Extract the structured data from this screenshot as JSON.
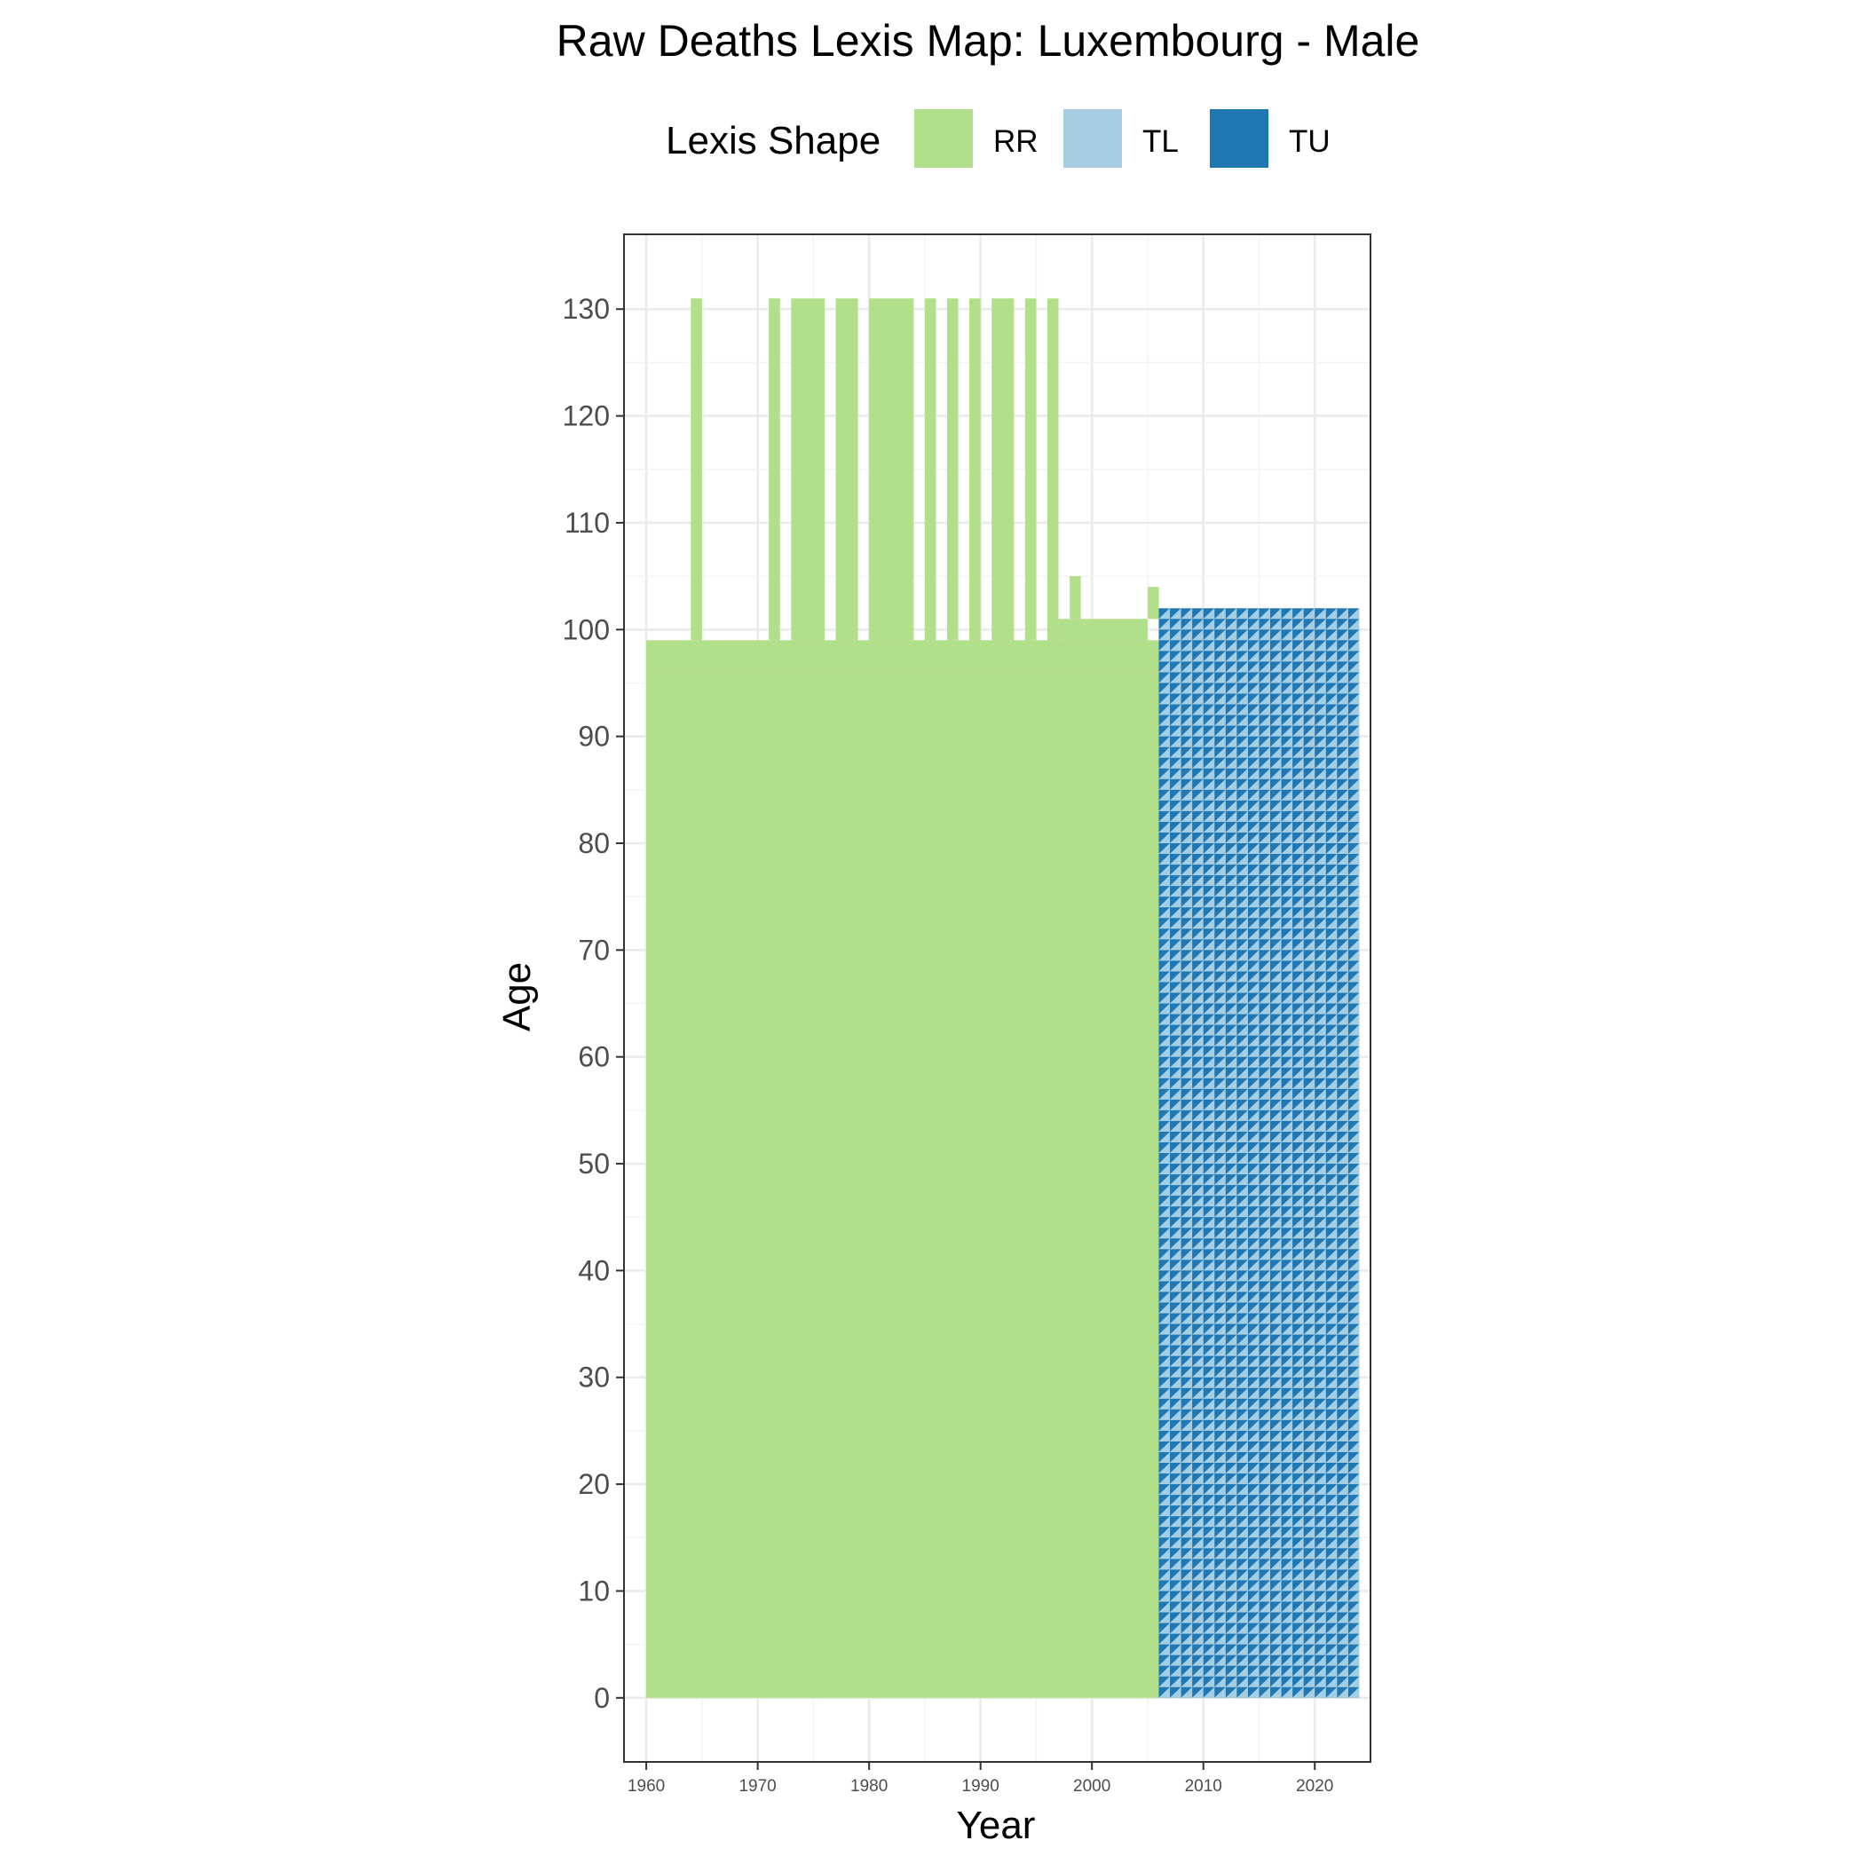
{
  "chart_data": {
    "type": "heatmap",
    "title": "Raw Deaths Lexis Map: Luxembourg - Male",
    "xlabel": "Year",
    "ylabel": "Age",
    "xlim": [
      1958,
      2025
    ],
    "ylim": [
      -6,
      137
    ],
    "x_ticks": [
      1960,
      1970,
      1980,
      1990,
      2000,
      2010,
      2020
    ],
    "y_ticks": [
      0,
      10,
      20,
      30,
      40,
      50,
      60,
      70,
      80,
      90,
      100,
      110,
      120,
      130
    ],
    "grid": true,
    "legend": {
      "title": "Lexis Shape",
      "position": "top",
      "entries": [
        {
          "key": "RR",
          "label": "RR",
          "color": "#b2df8a"
        },
        {
          "key": "TL",
          "label": "TL",
          "color": "#a6cee3"
        },
        {
          "key": "TU",
          "label": "TU",
          "color": "#1f78b4"
        }
      ]
    },
    "series": [
      {
        "shape": "RR",
        "color": "#b2df8a",
        "regions": [
          {
            "year_from": 1960,
            "year_to": 2006,
            "age_from": 0,
            "age_to": 96
          },
          {
            "year_from": 1960,
            "year_to": 2006,
            "age_from": 96,
            "age_to": 99
          },
          {
            "year_from": 1964,
            "year_to": 1965,
            "age_from": 99,
            "age_to": 131
          },
          {
            "year_from": 1971,
            "year_to": 1972,
            "age_from": 99,
            "age_to": 131
          },
          {
            "year_from": 1973,
            "year_to": 1976,
            "age_from": 99,
            "age_to": 131
          },
          {
            "year_from": 1977,
            "year_to": 1979,
            "age_from": 99,
            "age_to": 131
          },
          {
            "year_from": 1980,
            "year_to": 1984,
            "age_from": 99,
            "age_to": 131
          },
          {
            "year_from": 1985,
            "year_to": 1986,
            "age_from": 99,
            "age_to": 131
          },
          {
            "year_from": 1987,
            "year_to": 1988,
            "age_from": 99,
            "age_to": 131
          },
          {
            "year_from": 1989,
            "year_to": 1990,
            "age_from": 99,
            "age_to": 131
          },
          {
            "year_from": 1991,
            "year_to": 1993,
            "age_from": 99,
            "age_to": 131
          },
          {
            "year_from": 1994,
            "year_to": 1995,
            "age_from": 99,
            "age_to": 131
          },
          {
            "year_from": 1996,
            "year_to": 1997,
            "age_from": 99,
            "age_to": 131
          },
          {
            "year_from": 1997,
            "year_to": 2005,
            "age_from": 99,
            "age_to": 101
          },
          {
            "year_from": 1998,
            "year_to": 1999,
            "age_from": 101,
            "age_to": 105
          },
          {
            "year_from": 2005,
            "year_to": 2006,
            "age_from": 101,
            "age_to": 104
          }
        ]
      },
      {
        "shape": "TL",
        "color": "#a6cee3",
        "regions": [
          {
            "year_from": 2006,
            "year_to": 2024,
            "age_from": 0,
            "age_to": 102
          }
        ]
      },
      {
        "shape": "TU",
        "color": "#1f78b4",
        "regions": [
          {
            "year_from": 2006,
            "year_to": 2024,
            "age_from": 0,
            "age_to": 102
          }
        ]
      }
    ]
  }
}
